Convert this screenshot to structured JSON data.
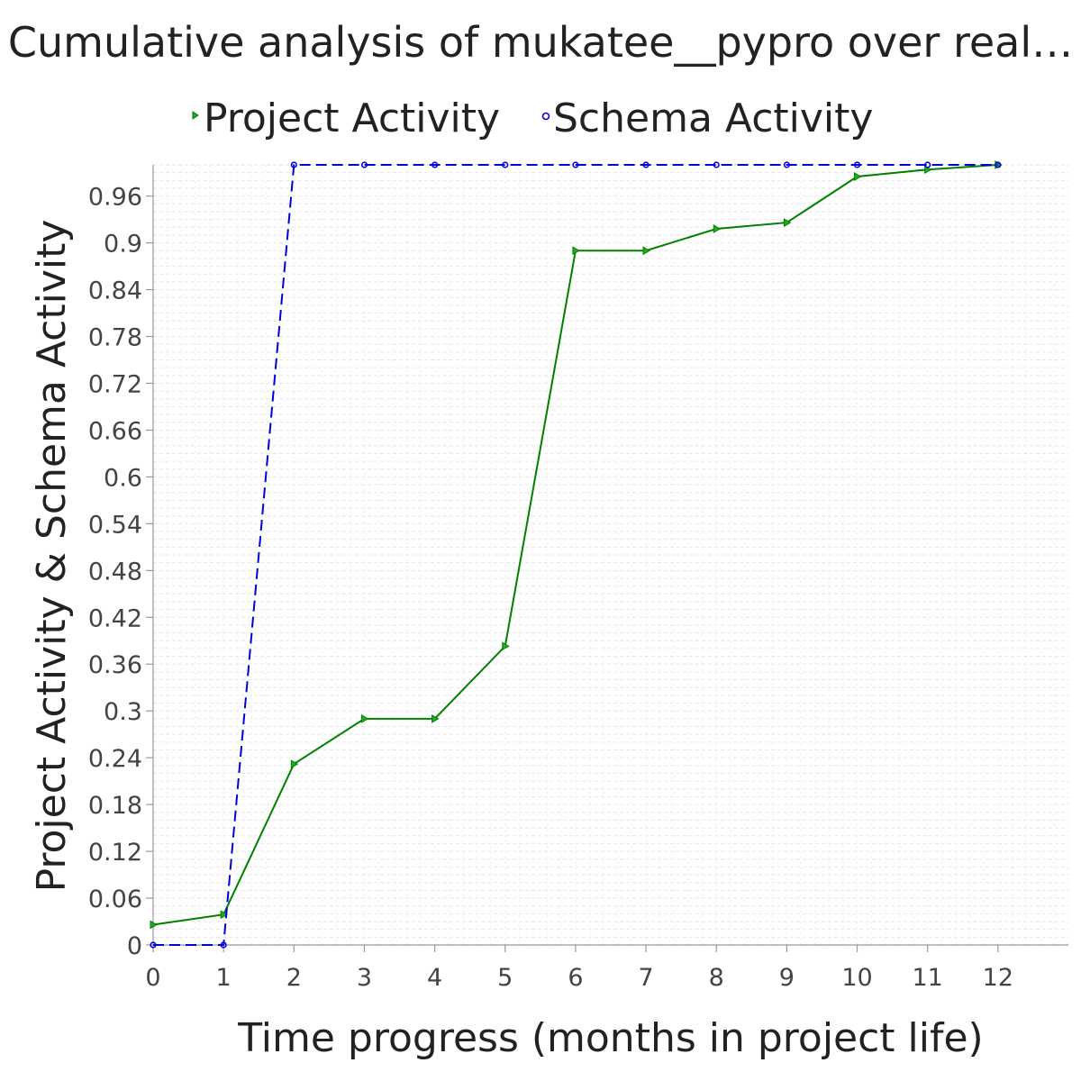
{
  "chart_data": {
    "type": "line",
    "title": "Cumulative analysis of mukatee__pypro over real…",
    "xlabel": "Time progress (months in project life)",
    "ylabel": "Project Activity & Schema Activity",
    "x": [
      0,
      1,
      2,
      3,
      4,
      5,
      6,
      7,
      8,
      9,
      10,
      11,
      12
    ],
    "xlim": [
      0,
      13
    ],
    "ylim": [
      0,
      1.0
    ],
    "x_ticks": [
      "0",
      "1",
      "2",
      "3",
      "4",
      "5",
      "6",
      "7",
      "8",
      "9",
      "10",
      "11",
      "12"
    ],
    "y_ticks": [
      "0",
      "0.06",
      "0.12",
      "0.18",
      "0.24",
      "0.3",
      "0.36",
      "0.42",
      "0.48",
      "0.54",
      "0.6",
      "0.66",
      "0.72",
      "0.78",
      "0.84",
      "0.9",
      "0.96"
    ],
    "legend_position": "top-center",
    "grid": true,
    "series": [
      {
        "name": "Project Activity",
        "color": "#008000",
        "marker": "triangle-right",
        "line_style": "solid",
        "values": [
          0.026,
          0.039,
          0.232,
          0.29,
          0.29,
          0.383,
          0.89,
          0.89,
          0.918,
          0.926,
          0.985,
          0.994,
          1.0
        ]
      },
      {
        "name": "Schema Activity",
        "color": "#0000dd",
        "marker": "circle",
        "line_style": "dashed",
        "values": [
          0.0,
          0.0,
          1.0,
          1.0,
          1.0,
          1.0,
          1.0,
          1.0,
          1.0,
          1.0,
          1.0,
          1.0,
          1.0
        ]
      }
    ]
  }
}
